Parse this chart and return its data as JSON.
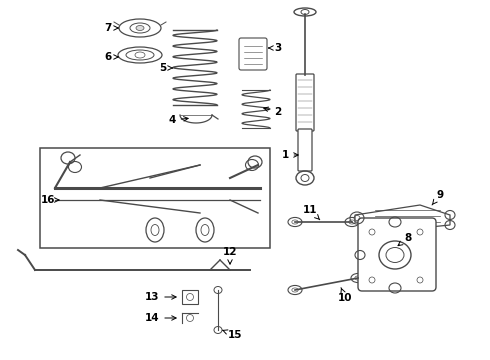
{
  "bg_color": "#ffffff",
  "line_color": "#4a4a4a",
  "label_color": "#000000",
  "fig_width": 4.9,
  "fig_height": 3.6,
  "dpi": 100
}
